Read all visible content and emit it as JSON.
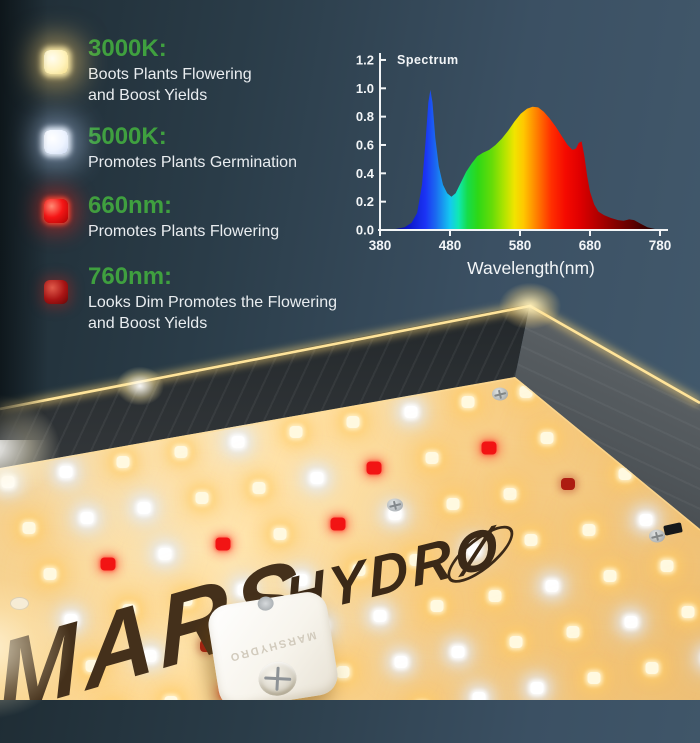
{
  "legend": {
    "heading_color": "#3fa03f",
    "text_color": "#e9edf0",
    "items": [
      {
        "id": "3000K",
        "heading": "3000K:",
        "led_icon": "warm-white-led-icon",
        "desc_lines": [
          "Boots Plants Flowering",
          "and Boost Yields"
        ]
      },
      {
        "id": "5000K",
        "heading": "5000K:",
        "led_icon": "cool-white-led-icon",
        "desc_lines": [
          "Promotes Plants Germination"
        ]
      },
      {
        "id": "660nm",
        "heading": "660nm:",
        "led_icon": "red-led-icon",
        "desc_lines": [
          "Promotes Plants Flowering"
        ]
      },
      {
        "id": "760nm",
        "heading": "760nm:",
        "led_icon": "deep-red-led-icon",
        "desc_lines": [
          "Looks Dim Promotes the Flowering",
          "and Boost Yields"
        ]
      }
    ]
  },
  "chart_data": {
    "type": "area",
    "title": "Spectrum",
    "xlabel": "Wavelength(nm)",
    "ylabel": "",
    "xlim": [
      380,
      780
    ],
    "ylim": [
      0,
      1.2
    ],
    "x_ticks": [
      380,
      480,
      580,
      680,
      780
    ],
    "y_ticks": [
      0.0,
      0.2,
      0.4,
      0.6,
      0.8,
      1.0,
      1.2
    ],
    "grid": false,
    "axis_color": "#f2f5f7",
    "series": [
      {
        "name": "Spectrum",
        "points": [
          [
            380,
            0
          ],
          [
            400,
            0.005
          ],
          [
            415,
            0.02
          ],
          [
            425,
            0.05
          ],
          [
            433,
            0.12
          ],
          [
            440,
            0.32
          ],
          [
            445,
            0.62
          ],
          [
            449,
            0.9
          ],
          [
            452,
            0.99
          ],
          [
            455,
            0.9
          ],
          [
            459,
            0.65
          ],
          [
            464,
            0.45
          ],
          [
            470,
            0.32
          ],
          [
            476,
            0.26
          ],
          [
            482,
            0.235
          ],
          [
            488,
            0.26
          ],
          [
            495,
            0.33
          ],
          [
            503,
            0.41
          ],
          [
            511,
            0.47
          ],
          [
            519,
            0.52
          ],
          [
            527,
            0.545
          ],
          [
            536,
            0.565
          ],
          [
            545,
            0.6
          ],
          [
            554,
            0.645
          ],
          [
            563,
            0.7
          ],
          [
            572,
            0.765
          ],
          [
            581,
            0.82
          ],
          [
            590,
            0.855
          ],
          [
            598,
            0.87
          ],
          [
            606,
            0.865
          ],
          [
            614,
            0.835
          ],
          [
            622,
            0.79
          ],
          [
            631,
            0.73
          ],
          [
            640,
            0.66
          ],
          [
            648,
            0.6
          ],
          [
            655,
            0.565
          ],
          [
            660,
            0.575
          ],
          [
            664,
            0.615
          ],
          [
            668,
            0.625
          ],
          [
            672,
            0.52
          ],
          [
            676,
            0.38
          ],
          [
            680,
            0.27
          ],
          [
            686,
            0.18
          ],
          [
            692,
            0.13
          ],
          [
            700,
            0.105
          ],
          [
            710,
            0.085
          ],
          [
            720,
            0.07
          ],
          [
            728,
            0.065
          ],
          [
            736,
            0.075
          ],
          [
            743,
            0.07
          ],
          [
            752,
            0.045
          ],
          [
            762,
            0.02
          ],
          [
            772,
            0.008
          ],
          [
            780,
            0.002
          ]
        ]
      }
    ],
    "gradient_stops": [
      [
        380,
        "#03003c"
      ],
      [
        420,
        "#0b16c8"
      ],
      [
        445,
        "#1b34f5"
      ],
      [
        460,
        "#1b6bf0"
      ],
      [
        480,
        "#14c8f0"
      ],
      [
        492,
        "#10e8b4"
      ],
      [
        505,
        "#16dc4a"
      ],
      [
        520,
        "#2ed816"
      ],
      [
        540,
        "#66dc08"
      ],
      [
        558,
        "#b2e400"
      ],
      [
        572,
        "#f0e400"
      ],
      [
        585,
        "#ffc800"
      ],
      [
        598,
        "#ff9600"
      ],
      [
        612,
        "#ff6000"
      ],
      [
        625,
        "#ff2e00"
      ],
      [
        645,
        "#f50a00"
      ],
      [
        665,
        "#e00000"
      ],
      [
        690,
        "#b40000"
      ],
      [
        715,
        "#870000"
      ],
      [
        740,
        "#600000"
      ],
      [
        760,
        "#380000"
      ],
      [
        780,
        "#1d0000"
      ]
    ]
  },
  "board": {
    "logo_left": "MARS",
    "logo_right_prefix": "HYDR",
    "logo_right_o": "Ø",
    "driver_label": "MARSHYDRO",
    "pcb_color": "#f5cc84",
    "logo_color": "#3b2917",
    "led_colors": {
      "warm_white": "#fff9e0",
      "cool_white": "#ffffff",
      "red_660nm": "#f21414",
      "deep_red_760nm": "#ad1d12"
    },
    "rim_glow_color": "#ffd977"
  }
}
